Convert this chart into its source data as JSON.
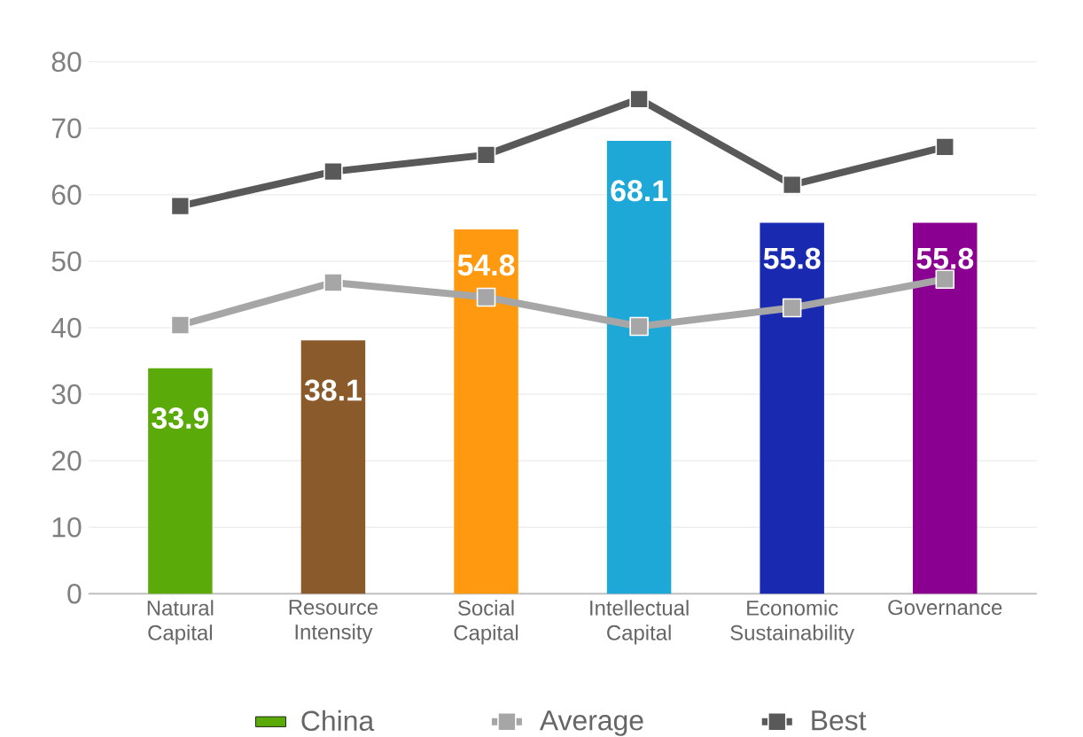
{
  "chart_data": {
    "type": "bar",
    "categories": [
      "Natural Capital",
      "Resource Intensity",
      "Social Capital",
      "Intellectual Capital",
      "Economic Sustainability",
      "Governance"
    ],
    "series": [
      {
        "name": "China",
        "color": "#5aab0a",
        "colors": [
          "#5aab0a",
          "#8b5a2b",
          "#ff9a10",
          "#1ea8d8",
          "#1a2ab0",
          "#8a0090"
        ],
        "values": [
          33.9,
          38.1,
          54.8,
          68.1,
          55.8,
          55.8
        ],
        "value_labels": [
          "33.9",
          "38.1",
          "54.8",
          "68.1",
          "55.8",
          "55.8"
        ]
      },
      {
        "name": "Average",
        "type": "line",
        "color": "#a6a6a6",
        "values": [
          40.4,
          46.8,
          44.6,
          40.2,
          43.0,
          47.3
        ]
      },
      {
        "name": "Best",
        "type": "line",
        "color": "#595959",
        "values": [
          58.3,
          63.5,
          66.0,
          74.4,
          61.5,
          67.2
        ]
      }
    ],
    "ylim": [
      0,
      80
    ],
    "yticks": [
      0,
      10,
      20,
      30,
      40,
      50,
      60,
      70,
      80
    ],
    "grid": "y",
    "legend": "bottom",
    "marker": "square"
  }
}
